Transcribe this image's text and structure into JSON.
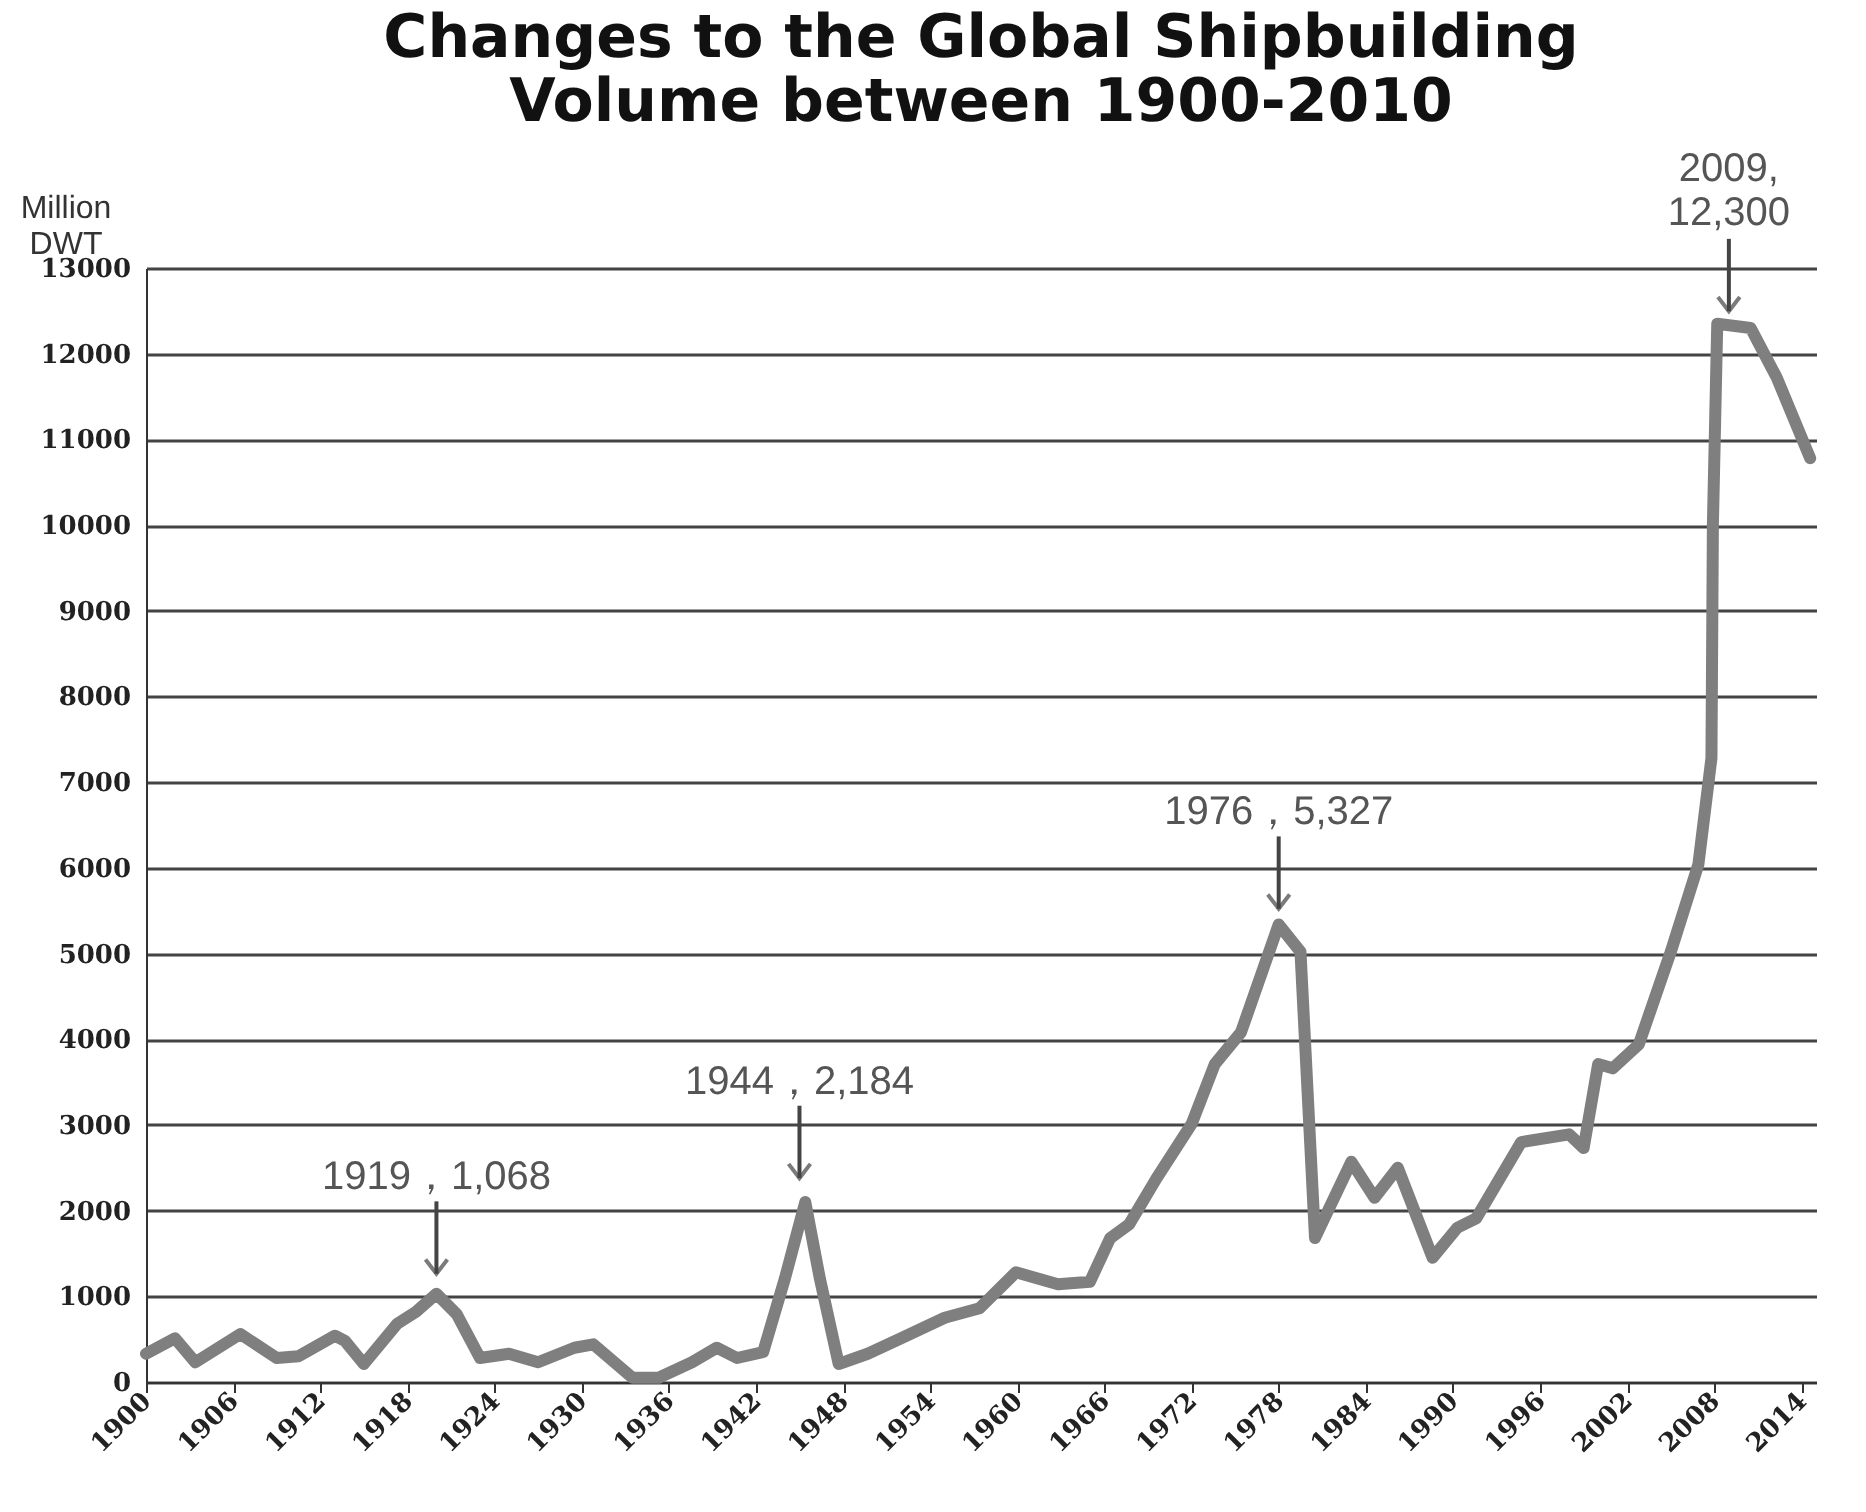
{
  "chart_data": {
    "type": "line",
    "title": "Changes to the Global Shipbuilding\nVolume between 1900-2010",
    "ylabel": "Million\nDWT",
    "x": [
      1900,
      1902,
      1903.4,
      1906.5,
      1909,
      1910.5,
      1913,
      1913.7,
      1915,
      1917.3,
      1918.6,
      1920,
      1921.4,
      1923,
      1925,
      1927,
      1929.5,
      1930.8,
      1933.5,
      1935.3,
      1937.6,
      1939.3,
      1940.7,
      1942.5,
      1944,
      1945.4,
      1946.4,
      1947.7,
      1949.7,
      1952,
      1955,
      1957.4,
      1959.9,
      1962.8,
      1965,
      1966.4,
      1967.7,
      1969.6,
      1972,
      1973.6,
      1975.4,
      1978,
      1979.5,
      1980.5,
      1983,
      1984.6,
      1986.2,
      1988.6,
      1990.3,
      1991.6,
      1994.7,
      1998,
      1999,
      2000,
      2001,
      2002.8,
      2005,
      2006.9,
      2007.8,
      2007.9,
      2008.2,
      2010.5,
      2012.3,
      2014.6
    ],
    "series": [
      {
        "color": "#7f7f7f",
        "values": [
          330,
          510,
          230,
          560,
          280,
          300,
          540,
          480,
          210,
          680,
          820,
          1030,
          790,
          280,
          330,
          230,
          400,
          440,
          50,
          50,
          230,
          400,
          280,
          350,
          1210,
          2100,
          1210,
          210,
          330,
          510,
          750,
          860,
          1280,
          1140,
          1170,
          1680,
          1840,
          2380,
          3010,
          3710,
          4080,
          5340,
          5020,
          1680,
          2570,
          2150,
          2500,
          1450,
          1800,
          1910,
          2800,
          2890,
          2730,
          3710,
          3660,
          3940,
          5020,
          6040,
          7280,
          10010,
          12350,
          12300,
          11720,
          10780
        ]
      }
    ],
    "xlim": [
      1900,
      2015
    ],
    "xticks": [
      1900,
      1906,
      1912,
      1918,
      1924,
      1930,
      1936,
      1942,
      1948,
      1954,
      1960,
      1966,
      1972,
      1978,
      1984,
      1990,
      1996,
      2002,
      2008,
      2014
    ],
    "ylim": [
      0,
      13000
    ],
    "yticks": [
      0,
      1000,
      2000,
      3000,
      4000,
      5000,
      6000,
      7000,
      8000,
      9000,
      10000,
      11000,
      12000,
      13000
    ],
    "grid": "y",
    "legend": false,
    "marker": "none",
    "line_style": "solid",
    "annotations": [
      {
        "text": "1919，1,068",
        "x": 1920,
        "y": 1068
      },
      {
        "text": "1944，2,184",
        "x": 1945,
        "y": 2184
      },
      {
        "text": "1976，5,327",
        "x": 1978,
        "y": 5327
      },
      {
        "text": "2009,\n12,300",
        "x": 2009,
        "y": 12300
      }
    ]
  }
}
